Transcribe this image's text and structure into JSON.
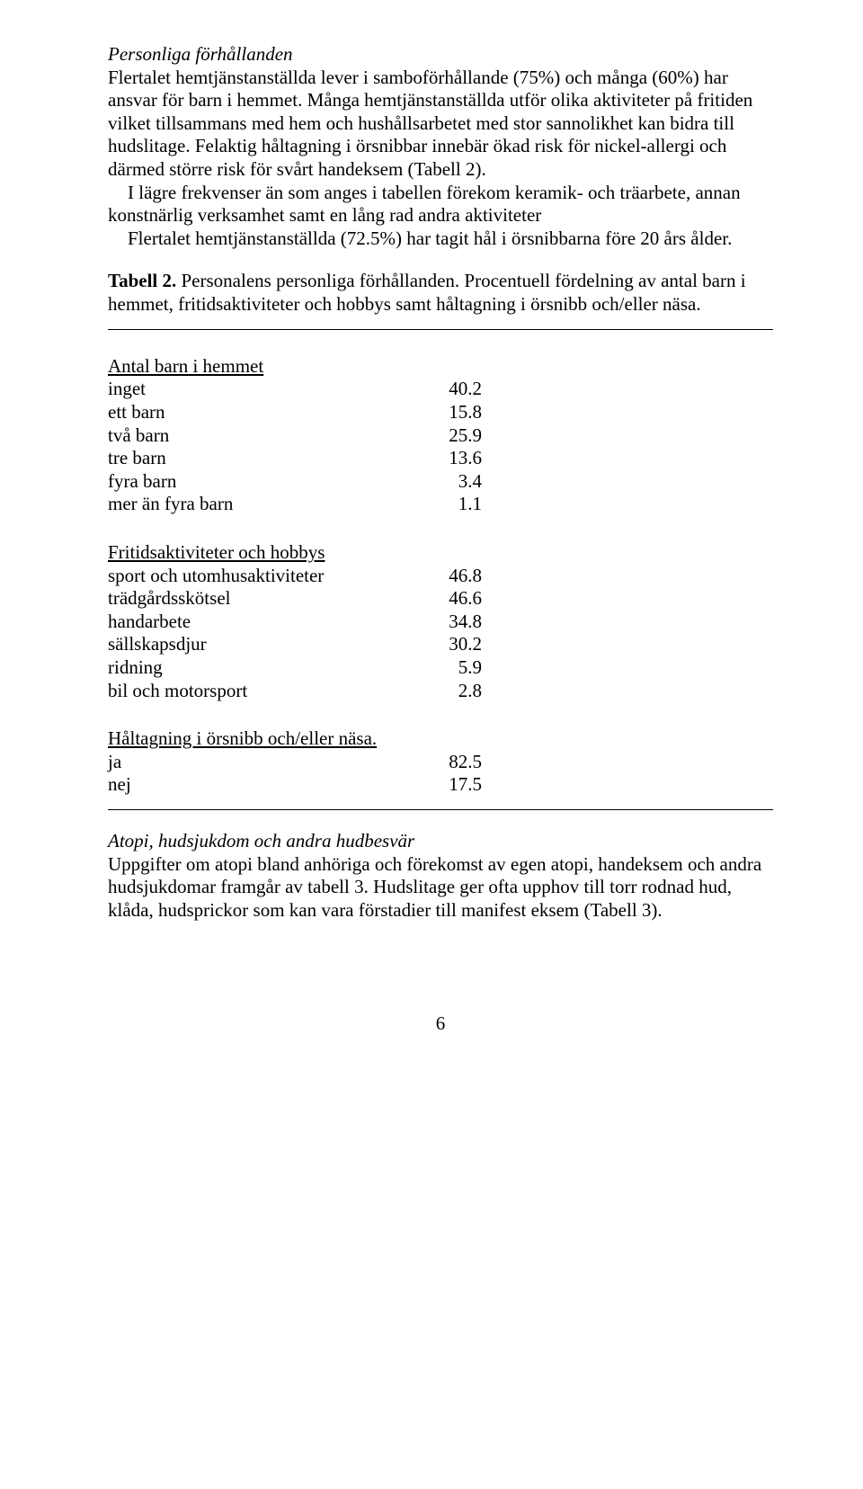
{
  "section1": {
    "title": "Personliga förhållanden",
    "p1": "Flertalet hemtjänstanställda lever i samboförhållande (75%) och många (60%) har ansvar för barn i hemmet. Många hemtjänstanställda utför olika aktiviteter på fritiden vilket tillsammans med hem och hushållsarbetet med stor sannolikhet kan bidra till hudslitage. Felaktig håltagning i örsnibbar innebär ökad risk för nickel-allergi och därmed större risk för svårt handeksem (Tabell 2).",
    "p2": "I lägre frekvenser än som anges i tabellen förekom keramik- och träarbete, annan konstnärlig verksamhet samt en lång rad andra aktiviteter",
    "p3": "Flertalet hemtjänstanställda (72.5%) har tagit hål i örsnibbarna före 20 års ålder."
  },
  "caption": {
    "bold": "Tabell 2.",
    "rest": " Personalens personliga förhållanden. Procentuell fördelning av antal barn i hemmet, fritidsaktiviteter och hobbys samt håltagning i örsnibb och/eller näsa."
  },
  "group1": {
    "heading": "Antal barn i hemmet",
    "rows": [
      {
        "label": "inget",
        "value": "40.2"
      },
      {
        "label": "ett barn",
        "value": "15.8"
      },
      {
        "label": "två barn",
        "value": "25.9"
      },
      {
        "label": "tre barn",
        "value": "13.6"
      },
      {
        "label": "fyra barn",
        "value": "3.4"
      },
      {
        "label": "mer än fyra barn",
        "value": "1.1"
      }
    ]
  },
  "group2": {
    "heading": "Fritidsaktiviteter och hobbys",
    "rows": [
      {
        "label": "sport och utomhusaktiviteter",
        "value": "46.8"
      },
      {
        "label": "trädgårdsskötsel",
        "value": "46.6"
      },
      {
        "label": "handarbete",
        "value": "34.8"
      },
      {
        "label": "sällskapsdjur",
        "value": "30.2"
      },
      {
        "label": "ridning",
        "value": "5.9"
      },
      {
        "label": "bil och motorsport",
        "value": "2.8"
      }
    ]
  },
  "group3": {
    "heading": "Håltagning i örsnibb och/eller näsa.",
    "rows": [
      {
        "label": "ja",
        "value": "82.5"
      },
      {
        "label": "nej",
        "value": "17.5"
      }
    ]
  },
  "section2": {
    "title": "Atopi, hudsjukdom och andra hudbesvär",
    "p1": "Uppgifter om atopi bland anhöriga och förekomst av egen atopi, handeksem och andra hudsjukdomar framgår av tabell 3. Hudslitage ger ofta upphov till torr rodnad hud, klåda, hudsprickor som kan vara förstadier till manifest eksem (Tabell 3)."
  },
  "page_number": "6"
}
